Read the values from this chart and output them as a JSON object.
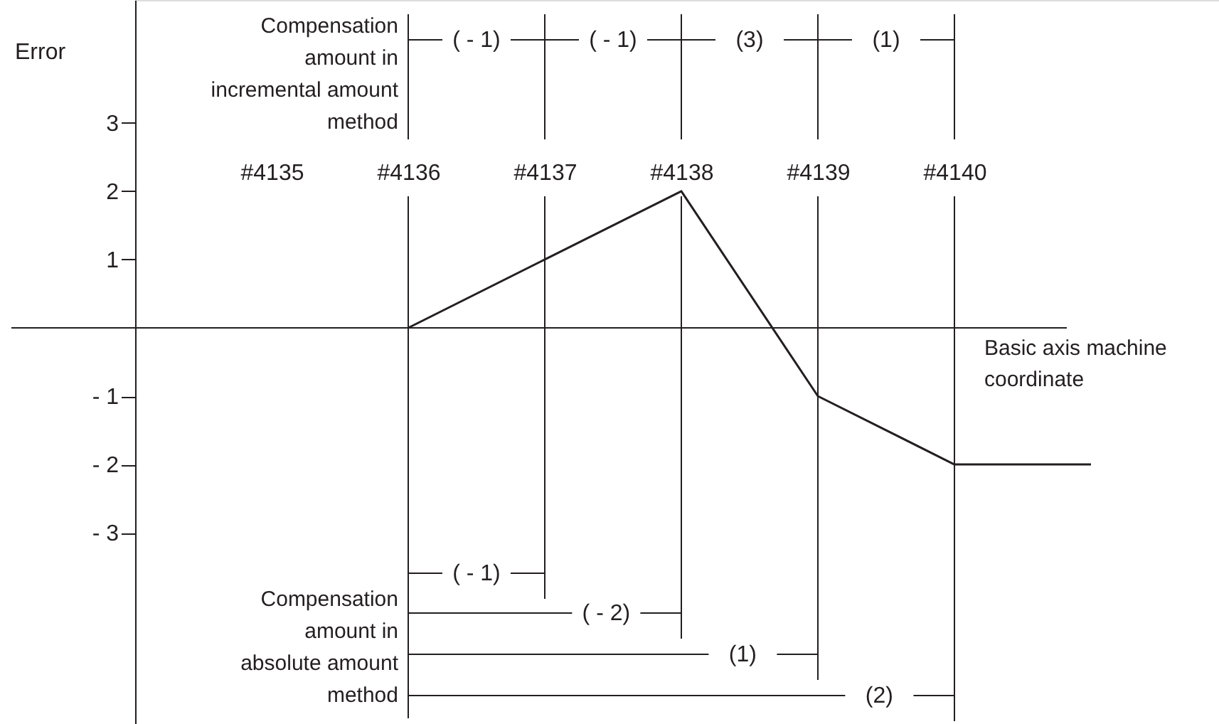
{
  "chart_data": {
    "type": "line",
    "categories": [
      null,
      "#4135",
      "#4136",
      "#4137",
      "#4138",
      "#4139",
      "#4140",
      null
    ],
    "values": [
      null,
      null,
      0,
      1,
      2,
      -1,
      -2,
      -2
    ],
    "color": "#231f20",
    "ylim": [
      -5.8,
      4.8
    ],
    "yticks": [
      {
        "value": -3,
        "label": "- 3"
      },
      {
        "value": -2,
        "label": "- 2"
      },
      {
        "value": -1,
        "label": "- 1"
      },
      1,
      2,
      3
    ],
    "ylabel": "Error",
    "grid": "x",
    "xlabel": "Basic axis machine coordinate",
    "annotations": [
      "Compensation amount in incremental amount method",
      "( - 1)",
      "( - 1)",
      "(3)",
      "(1)",
      "Compensation amount in absolute amount method",
      "( - 1)",
      "( - 2)",
      "(1)",
      "(2)"
    ]
  }
}
